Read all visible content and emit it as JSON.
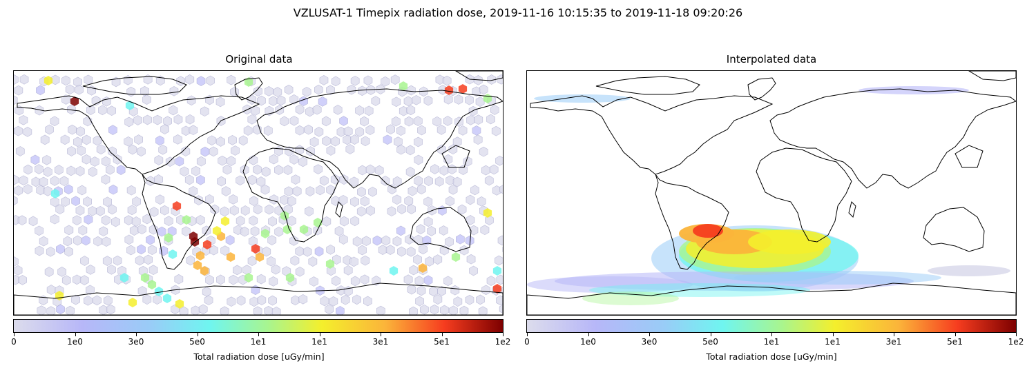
{
  "title": "VZLUSAT-1 Timepix radiation dose, 2019-11-16 10:15:35 to 2019-11-18 09:20:26",
  "panels": [
    {
      "title": "Original data",
      "colorbar_label": "Total radiation dose [uGy/min]",
      "ticks": [
        "0",
        "1e0",
        "3e0",
        "5e0",
        "1e1",
        "1e1",
        "3e1",
        "5e1",
        "1e2"
      ]
    },
    {
      "title": "Interpolated data",
      "colorbar_label": "Total radiation dose [uGy/min]",
      "ticks": [
        "0",
        "1e0",
        "3e0",
        "5e0",
        "1e1",
        "1e1",
        "3e1",
        "5e1",
        "1e2"
      ]
    }
  ],
  "colormap": [
    "#dcdcec",
    "#b7b7f8",
    "#99ccf7",
    "#6ff5f0",
    "#a8f58f",
    "#f4ef2c",
    "#fbb43a",
    "#f63d1f",
    "#7d0000"
  ],
  "map": {
    "projection": "equirectangular",
    "coastlines": true,
    "map_color": "#000000"
  }
}
